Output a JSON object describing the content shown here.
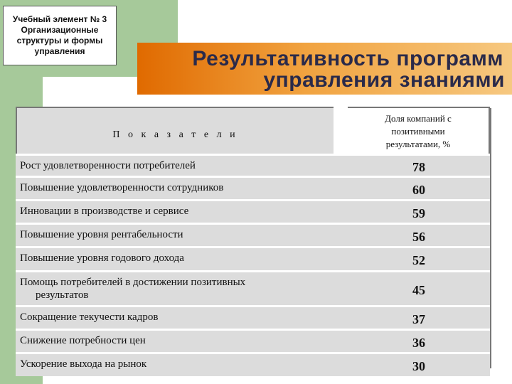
{
  "element_box": {
    "lines": [
      "Учебный элемент № 3",
      "Организационные",
      "структуры и формы",
      "управления"
    ]
  },
  "title": {
    "line1": "Результативность программ",
    "line2": "управления знаниями"
  },
  "table": {
    "header_left": "П о к а з а т е л и",
    "header_right": [
      "Доля компаний с",
      "позитивными",
      "результатами, %"
    ],
    "rows": [
      {
        "label": "Рост удовлетворенности потребителей",
        "value": "78"
      },
      {
        "label": "Повышение удовлетворенности сотрудников",
        "value": "60"
      },
      {
        "label": "Инновации в производстве и сервисе",
        "value": "59"
      },
      {
        "label": "Повышение уровня рентабельности",
        "value": "56"
      },
      {
        "label": "Повышение уровня годового дохода",
        "value": "52"
      },
      {
        "label_line1": "Помощь потребителей в достижении позитивных",
        "label_line2": "результатов",
        "value": "45"
      },
      {
        "label": "Сокращение текучести кадров",
        "value": "37"
      },
      {
        "label": "Снижение потребности цен",
        "value": "36"
      },
      {
        "label": "Ускорение выхода на рынок",
        "value": "30"
      }
    ]
  },
  "colors": {
    "green_accent": "#a6c99a",
    "orange_gradient_start": "#e06a00",
    "orange_gradient_end": "#f6c880",
    "row_gray": "#dcdcdc",
    "title_text": "#2a2a4a"
  }
}
